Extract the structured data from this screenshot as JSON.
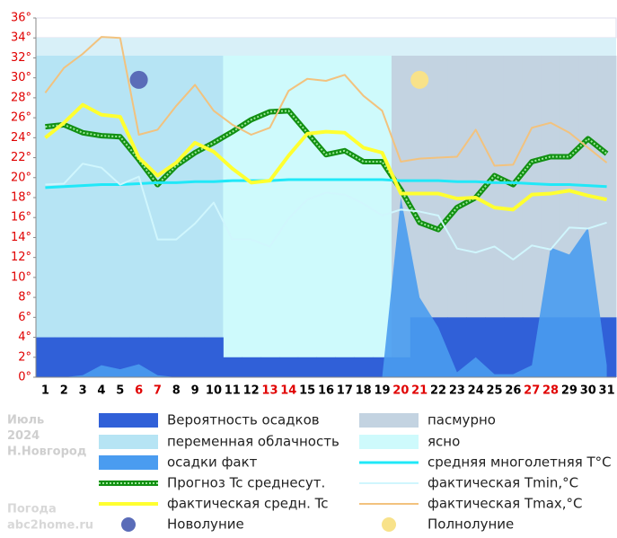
{
  "chart_data": {
    "type": "weather",
    "categories": [
      "1",
      "2",
      "3",
      "4",
      "5",
      "6",
      "7",
      "8",
      "9",
      "10",
      "11",
      "12",
      "13",
      "14",
      "15",
      "16",
      "17",
      "18",
      "19",
      "20",
      "21",
      "22",
      "23",
      "24",
      "25",
      "26",
      "27",
      "28",
      "29",
      "30",
      "31"
    ],
    "category_colors": [
      "#000",
      "#000",
      "#000",
      "#000",
      "#000",
      "#e00000",
      "#e00000",
      "#000",
      "#000",
      "#000",
      "#000",
      "#000",
      "#e00000",
      "#e00000",
      "#000",
      "#000",
      "#000",
      "#000",
      "#000",
      "#e00000",
      "#e00000",
      "#000",
      "#000",
      "#000",
      "#000",
      "#000",
      "#e00000",
      "#e00000",
      "#000",
      "#000",
      "#000"
    ],
    "ylim": [
      0,
      36
    ],
    "yticks": [
      {
        "value": 0,
        "label": "0°"
      },
      {
        "value": 2,
        "label": "2°"
      },
      {
        "value": 4,
        "label": "4°"
      },
      {
        "value": 6,
        "label": "6°"
      },
      {
        "value": 8,
        "label": "8°"
      },
      {
        "value": 10,
        "label": "10°"
      },
      {
        "value": 12,
        "label": "12°"
      },
      {
        "value": 14,
        "label": "14°"
      },
      {
        "value": 16,
        "label": "16°"
      },
      {
        "value": 18,
        "label": "18°"
      },
      {
        "value": 20,
        "label": "20°"
      },
      {
        "value": 22,
        "label": "22°"
      },
      {
        "value": 24,
        "label": "24°"
      },
      {
        "value": 26,
        "label": "26°"
      },
      {
        "value": 28,
        "label": "28°"
      },
      {
        "value": 30,
        "label": "30°"
      },
      {
        "value": 32,
        "label": "32°"
      },
      {
        "value": 34,
        "label": "34°"
      },
      {
        "value": 36,
        "label": "36°"
      }
    ],
    "tick_label_color": "#e00000",
    "sky": {
      "names": {
        "overcast": "пасмурно",
        "variable": "переменная облачность",
        "clear": "ясно"
      },
      "colors": {
        "overcast": "#c3d3e1",
        "variable": "#b6e4f4",
        "clear": "#cefafc"
      },
      "days": [
        "variable",
        "variable",
        "variable",
        "variable",
        "variable",
        "variable",
        "variable",
        "variable",
        "variable",
        "variable",
        "clear",
        "clear",
        "clear",
        "clear",
        "clear",
        "clear",
        "clear",
        "clear",
        "clear",
        "overcast",
        "overcast",
        "overcast",
        "overcast",
        "overcast",
        "overcast",
        "overcast",
        "overcast",
        "overcast",
        "overcast",
        "overcast",
        "overcast"
      ]
    },
    "series": [
      {
        "name": "Вероятность осадков",
        "kind": "bar",
        "color": "#3060d8",
        "values": [
          4,
          4,
          4,
          4,
          4,
          4,
          4,
          4,
          4,
          4,
          2,
          2,
          2,
          2,
          2,
          2,
          2,
          2,
          2,
          2,
          6,
          6,
          6,
          6,
          6,
          6,
          6,
          6,
          6,
          6,
          6
        ]
      },
      {
        "name": "осадки факт",
        "kind": "area",
        "color": "#4a9cf0",
        "values": [
          0,
          0,
          0.2,
          1.2,
          0.8,
          1.3,
          0.2,
          0,
          0,
          0,
          0,
          0,
          0,
          0,
          0,
          0,
          0,
          0,
          0,
          18,
          8,
          5,
          0.5,
          2,
          0.3,
          0.3,
          1.2,
          13,
          12.3,
          15,
          1.2
        ]
      },
      {
        "name": "Прогноз Tc среднесут.",
        "kind": "pattern-line",
        "color": "#129012",
        "values": [
          25.1,
          25.3,
          24.5,
          24.2,
          24.1,
          21.8,
          19.3,
          21.2,
          22.5,
          23.5,
          24.6,
          25.8,
          26.6,
          26.7,
          24.5,
          22.3,
          22.7,
          21.6,
          21.6,
          18.8,
          15.5,
          14.8,
          17.0,
          18.0,
          20.2,
          19.3,
          21.6,
          22.1,
          22.1,
          23.9,
          22.4
        ]
      },
      {
        "name": "средняя многолетняя T°C",
        "kind": "line",
        "color": "#20e8f8",
        "width": 3,
        "values": [
          19.0,
          19.1,
          19.2,
          19.3,
          19.3,
          19.4,
          19.5,
          19.5,
          19.6,
          19.6,
          19.7,
          19.7,
          19.7,
          19.8,
          19.8,
          19.8,
          19.8,
          19.8,
          19.8,
          19.7,
          19.7,
          19.7,
          19.6,
          19.6,
          19.5,
          19.5,
          19.4,
          19.3,
          19.3,
          19.2,
          19.1
        ]
      },
      {
        "name": "фактическая средн. Tc",
        "kind": "line",
        "color": "#ffff30",
        "width": 4,
        "values": [
          24.0,
          25.5,
          27.3,
          26.3,
          26.1,
          22.0,
          20.2,
          21.5,
          23.5,
          22.6,
          20.9,
          19.5,
          19.7,
          22.2,
          24.4,
          24.6,
          24.5,
          23.0,
          22.5,
          18.4,
          18.4,
          18.4,
          17.9,
          18.0,
          17.0,
          16.8,
          18.3,
          18.4,
          18.7,
          18.2,
          17.8
        ]
      },
      {
        "name": "фактическая Tmin,°C",
        "kind": "line",
        "color": "#d0f6fd",
        "width": 2,
        "values": [
          19.3,
          19.4,
          21.4,
          21.0,
          19.3,
          20.1,
          13.8,
          13.8,
          15.4,
          17.5,
          13.8,
          13.8,
          13.1,
          15.9,
          17.8,
          18.5,
          18.3,
          17.4,
          16.2,
          16.8,
          16.6,
          16.2,
          12.9,
          12.5,
          13.1,
          11.8,
          13.2,
          12.8,
          15.0,
          14.9,
          15.5
        ]
      },
      {
        "name": "фактическая Tmax,°C",
        "kind": "line",
        "color": "#f2c27e",
        "width": 2,
        "values": [
          28.5,
          31.0,
          32.4,
          34.1,
          34.0,
          24.3,
          24.8,
          27.2,
          29.3,
          26.7,
          25.3,
          24.3,
          25.0,
          28.7,
          29.9,
          29.7,
          30.3,
          28.2,
          26.7,
          21.6,
          21.9,
          22.0,
          22.1,
          24.8,
          21.2,
          21.3,
          25.0,
          25.5,
          24.5,
          23.0,
          21.5
        ]
      }
    ],
    "moon": [
      {
        "name": "Новолуние",
        "day": 6,
        "y": 29.8,
        "color": "#5a6cb8"
      },
      {
        "name": "Полнолуние",
        "day": 21,
        "y": 29.8,
        "color": "#f8e28a"
      }
    ],
    "info": [
      "Июль",
      "2024",
      "Н.Новгород"
    ],
    "site": [
      "Погода",
      "abc2home.ru"
    ]
  }
}
